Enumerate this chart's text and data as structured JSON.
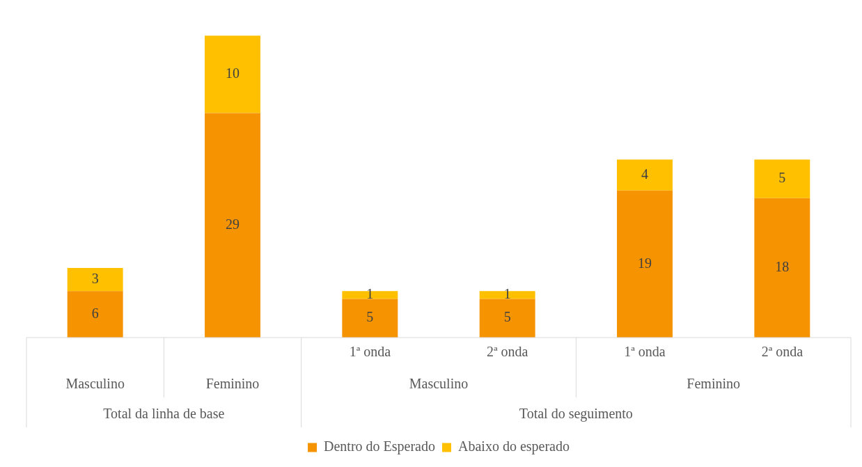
{
  "chart_data": {
    "type": "bar",
    "stacked": true,
    "categories": [
      null,
      null,
      "1ª onda",
      "2ª onda",
      "1ª onda",
      "2ª onda"
    ],
    "series": [
      {
        "name": "Dentro do Esperado",
        "color": "#f59300",
        "values": [
          6,
          29,
          5,
          5,
          19,
          18
        ]
      },
      {
        "name": "Abaixo do esperado",
        "color": "#ffc000",
        "values": [
          3,
          10,
          1,
          1,
          4,
          5
        ]
      }
    ],
    "data_labels": true,
    "annotations": [
      "Masculino",
      "Feminino",
      "Masculino",
      "Feminino",
      "Total da linha de base",
      "Total do seguimento"
    ],
    "legend": "bottom",
    "grid": false
  }
}
